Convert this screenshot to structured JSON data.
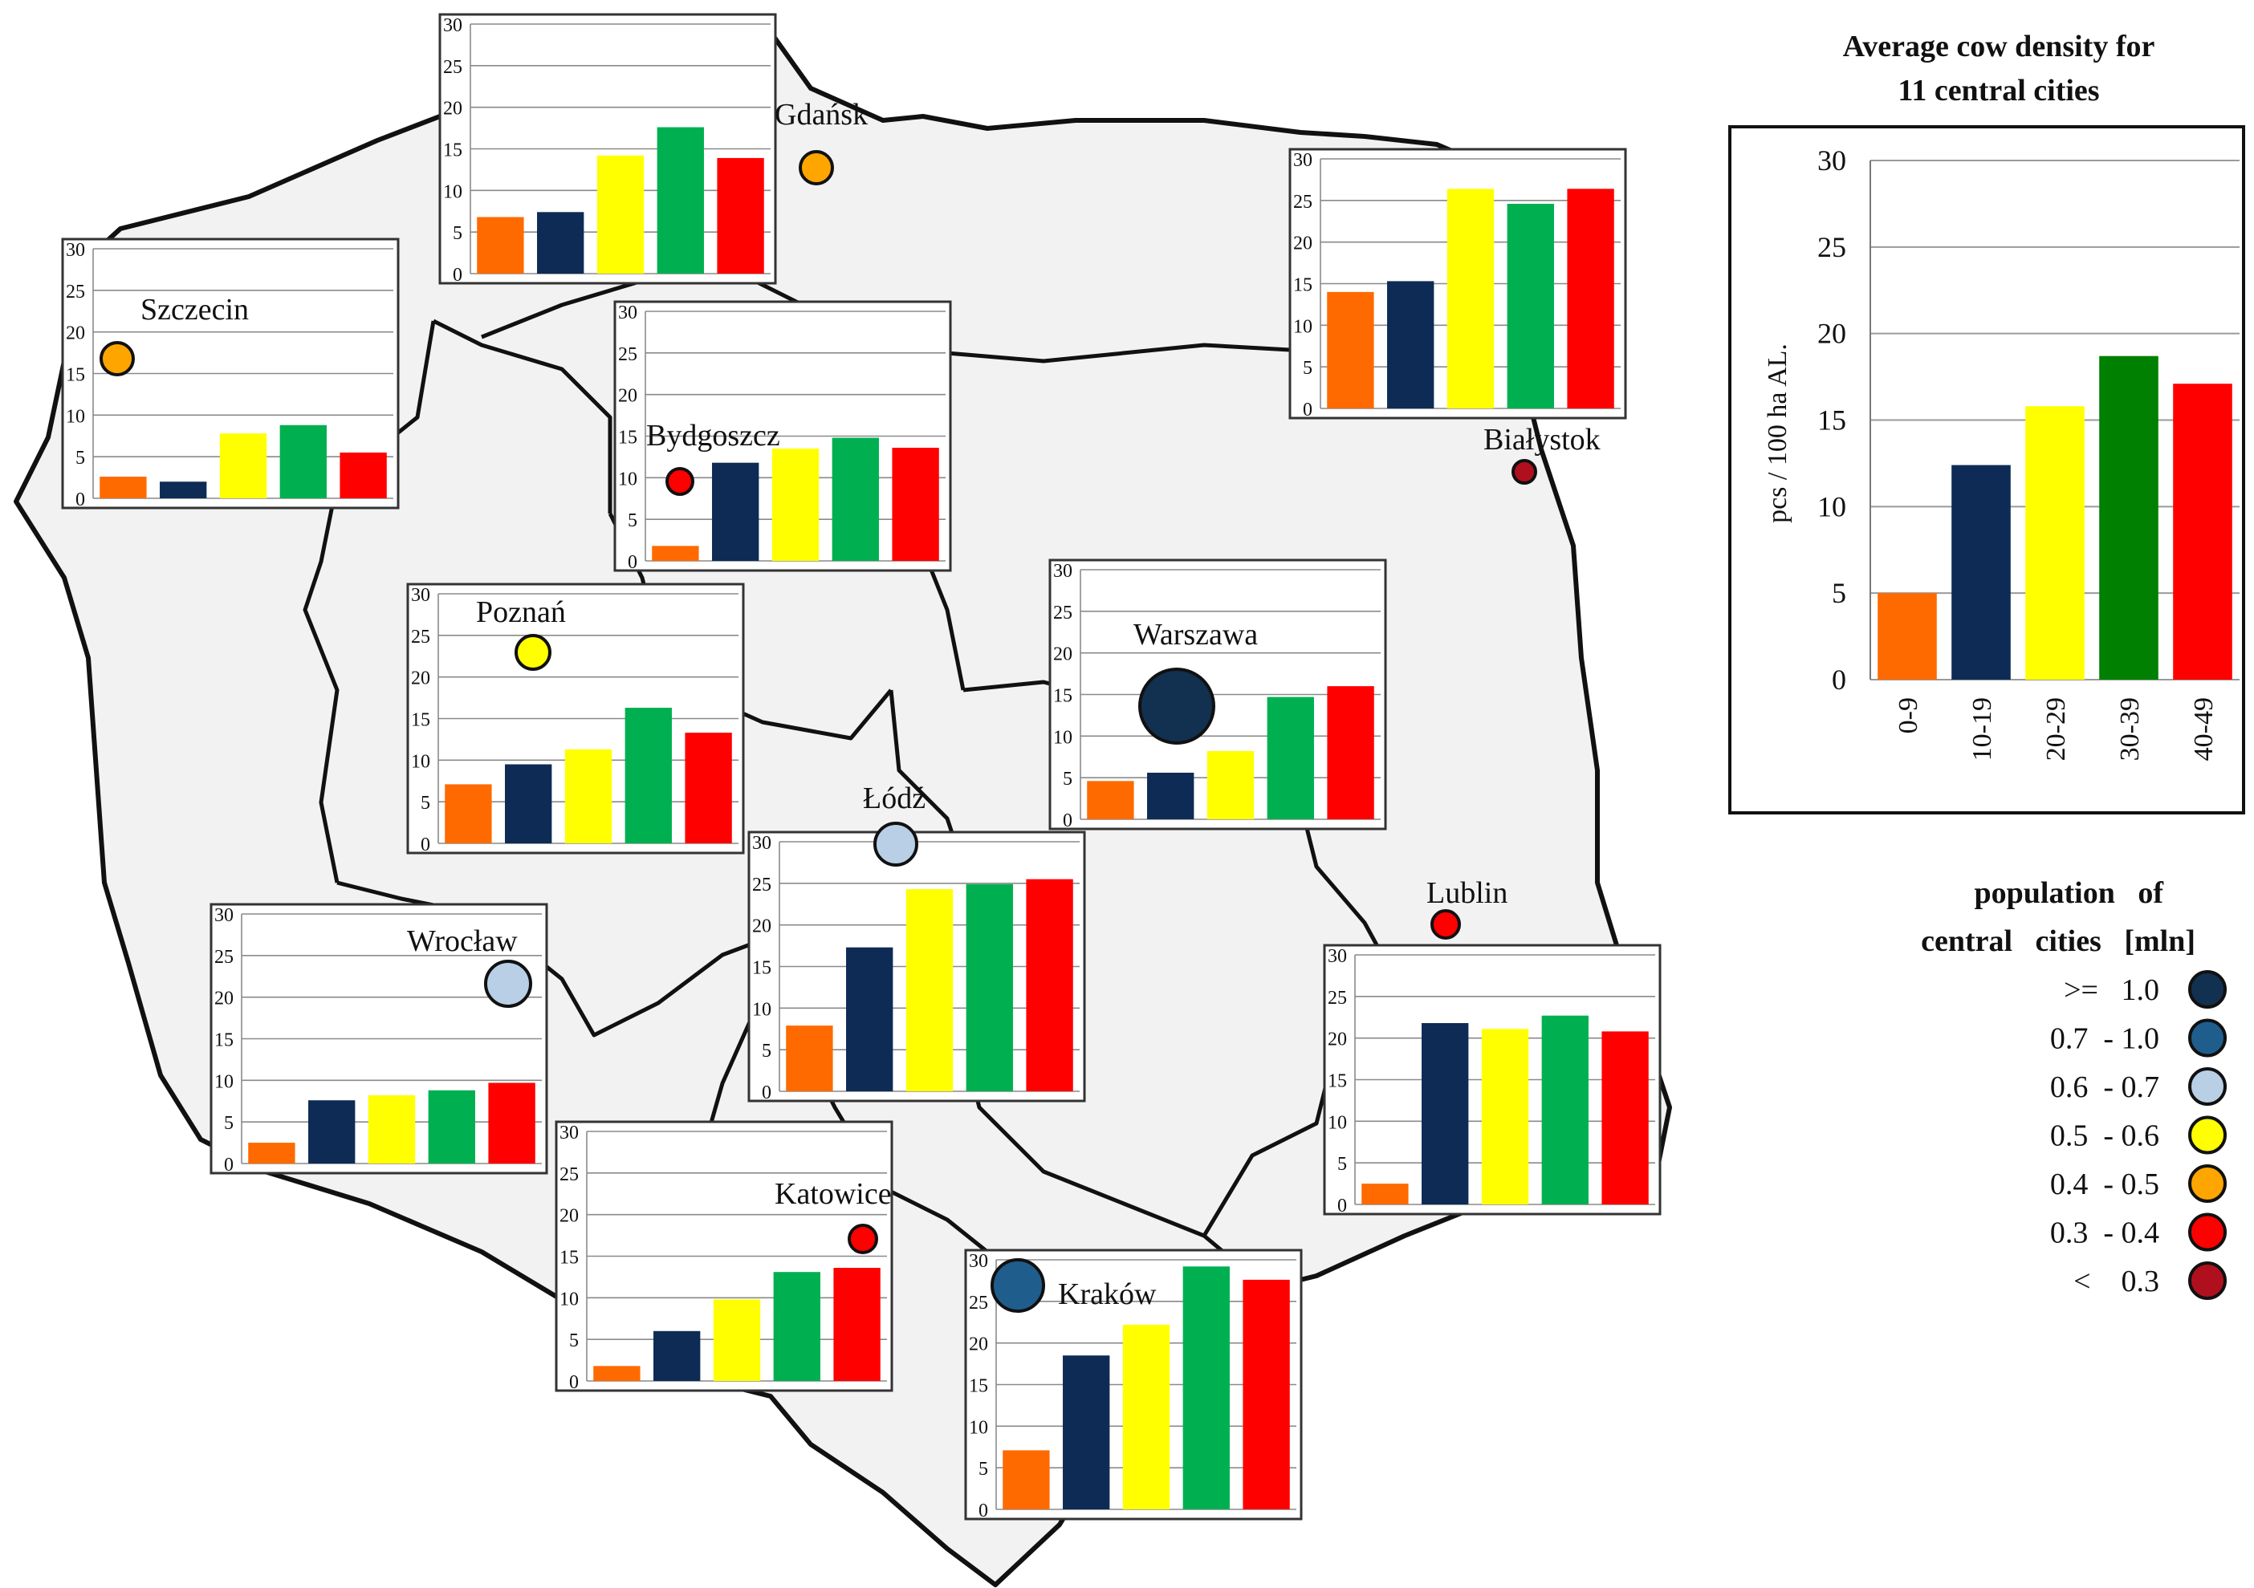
{
  "summary_chart": {
    "title_line1": "Average cow density for",
    "title_line2": "11 central cities",
    "ylabel": "pcs / 100 ha AL."
  },
  "legend": {
    "title_line1": "population   of",
    "title_line2": "central   cities   [mln]",
    "items": [
      {
        "label": ">=   1.0",
        "color": "#12304f"
      },
      {
        "label": "0.7  - 1.0",
        "color": "#1f5e8c"
      },
      {
        "label": "0.6  - 0.7",
        "color": "#b8cfe6"
      },
      {
        "label": "0.5  - 0.6",
        "color": "#ffff00"
      },
      {
        "label": "0.4  - 0.5",
        "color": "#ffa500"
      },
      {
        "label": "0.3  - 0.4",
        "color": "#ff0000"
      },
      {
        "label": "<    0.3",
        "color": "#b0101e"
      }
    ]
  },
  "series_colors": [
    "#ff6a00",
    "#0d2b55",
    "#ffff00",
    "#00b050",
    "#ff0000"
  ],
  "chart_data": [
    {
      "type": "bar",
      "title": "Average cow density for 11 central cities",
      "xlabel": "",
      "ylabel": "pcs / 100 ha AL.",
      "ylim": [
        0,
        30
      ],
      "yticks": [
        0,
        5,
        10,
        15,
        20,
        25,
        30
      ],
      "categories": [
        "0-9",
        "10-19",
        "20-29",
        "30-39",
        "40-49"
      ],
      "values": [
        5.0,
        12.4,
        15.8,
        18.7,
        17.1
      ],
      "colors": [
        "#ff6a00",
        "#0d2b55",
        "#ffff00",
        "#008000",
        "#ff0000"
      ]
    },
    {
      "type": "bar",
      "title": "Gdańsk",
      "ylim": [
        0,
        30
      ],
      "yticks": [
        0,
        5,
        10,
        15,
        20,
        25,
        30
      ],
      "values": [
        6.8,
        7.4,
        14.2,
        17.6,
        13.9
      ]
    },
    {
      "type": "bar",
      "title": "Szczecin",
      "ylim": [
        0,
        30
      ],
      "yticks": [
        0,
        5,
        10,
        15,
        20,
        25,
        30
      ],
      "values": [
        2.6,
        2.0,
        7.8,
        8.8,
        5.5
      ]
    },
    {
      "type": "bar",
      "title": "Bydgoszcz",
      "ylim": [
        0,
        30
      ],
      "yticks": [
        0,
        5,
        10,
        15,
        20,
        25,
        30
      ],
      "values": [
        1.8,
        11.8,
        13.5,
        14.8,
        13.6
      ]
    },
    {
      "type": "bar",
      "title": "Białystok",
      "ylim": [
        0,
        30
      ],
      "yticks": [
        0,
        5,
        10,
        15,
        20,
        25,
        30
      ],
      "values": [
        14.0,
        15.3,
        26.4,
        24.6,
        26.4
      ]
    },
    {
      "type": "bar",
      "title": "Poznań",
      "ylim": [
        0,
        30
      ],
      "yticks": [
        0,
        5,
        10,
        15,
        20,
        25,
        30
      ],
      "values": [
        7.1,
        9.5,
        11.3,
        16.3,
        13.3
      ]
    },
    {
      "type": "bar",
      "title": "Warszawa",
      "ylim": [
        0,
        30
      ],
      "yticks": [
        0,
        5,
        10,
        15,
        20,
        25,
        30
      ],
      "values": [
        4.6,
        5.6,
        8.2,
        14.7,
        16.0
      ]
    },
    {
      "type": "bar",
      "title": "Łódź",
      "ylim": [
        0,
        30
      ],
      "yticks": [
        0,
        5,
        10,
        15,
        20,
        25,
        30
      ],
      "values": [
        7.9,
        17.3,
        24.3,
        24.9,
        25.5
      ]
    },
    {
      "type": "bar",
      "title": "Wrocław",
      "ylim": [
        0,
        30
      ],
      "yticks": [
        0,
        5,
        10,
        15,
        20,
        25,
        30
      ],
      "values": [
        2.5,
        7.6,
        8.2,
        8.8,
        9.7
      ]
    },
    {
      "type": "bar",
      "title": "Lublin",
      "ylim": [
        0,
        30
      ],
      "yticks": [
        0,
        5,
        10,
        15,
        20,
        25,
        30
      ],
      "values": [
        2.5,
        21.8,
        21.1,
        22.7,
        20.8
      ]
    },
    {
      "type": "bar",
      "title": "Katowice",
      "ylim": [
        0,
        30
      ],
      "yticks": [
        0,
        5,
        10,
        15,
        20,
        25,
        30
      ],
      "values": [
        1.8,
        6.0,
        9.8,
        13.1,
        13.6
      ]
    },
    {
      "type": "bar",
      "title": "Kraków",
      "ylim": [
        0,
        30
      ],
      "yticks": [
        0,
        5,
        10,
        15,
        20,
        25,
        30
      ],
      "values": [
        7.1,
        18.5,
        22.2,
        29.2,
        27.6
      ]
    }
  ],
  "cities": [
    {
      "name": "Gdańsk",
      "color": "#ffa500"
    },
    {
      "name": "Szczecin",
      "color": "#ffa500"
    },
    {
      "name": "Bydgoszcz",
      "color": "#ff0000"
    },
    {
      "name": "Białystok",
      "color": "#b0101e"
    },
    {
      "name": "Poznań",
      "color": "#ffff00"
    },
    {
      "name": "Warszawa",
      "color": "#12304f"
    },
    {
      "name": "Łódź",
      "color": "#b8cfe6"
    },
    {
      "name": "Wrocław",
      "color": "#b8cfe6"
    },
    {
      "name": "Lublin",
      "color": "#ff0000"
    },
    {
      "name": "Katowice",
      "color": "#ff0000"
    },
    {
      "name": "Kraków",
      "color": "#1f5e8c"
    }
  ]
}
